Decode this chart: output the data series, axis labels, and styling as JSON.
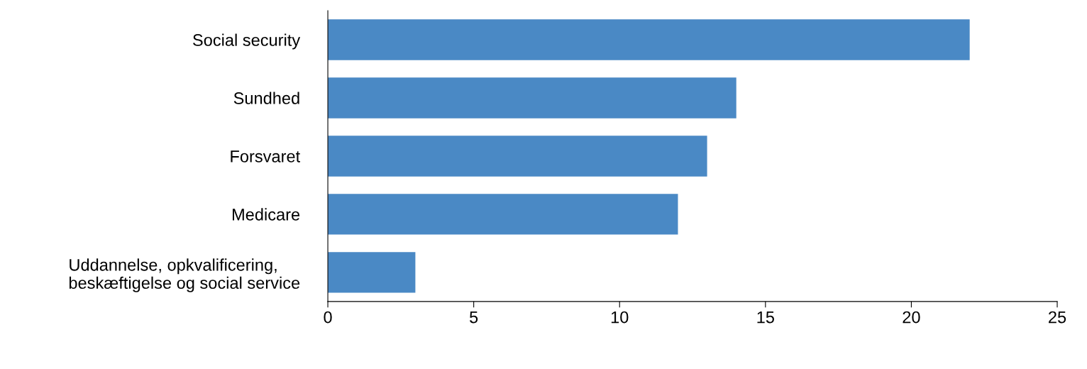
{
  "chart_data": {
    "type": "bar",
    "orientation": "horizontal",
    "categories": [
      "Social security",
      "Sundhed",
      "Forsvaret",
      "Medicare",
      "Uddannelse, opkvalificering,\nbeskæftigelse og social service"
    ],
    "values": [
      22,
      14,
      13,
      12,
      3
    ],
    "color": "#4a89c5",
    "xlim": [
      0,
      25
    ],
    "xticks": [
      0,
      5,
      10,
      15,
      20,
      25
    ],
    "grid": false,
    "legend": false
  }
}
